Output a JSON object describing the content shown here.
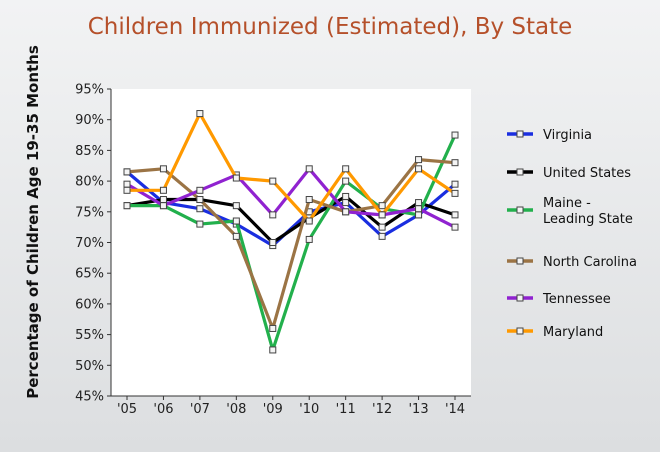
{
  "chart_data": {
    "type": "line",
    "title": "Children Immunized (Estimated), By State",
    "xlabel": "",
    "ylabel": "Percentage of Children Age 19-35 Months",
    "categories": [
      "'05",
      "'06",
      "'07",
      "'08",
      "'09",
      "'10",
      "'11",
      "'12",
      "'13",
      "'14"
    ],
    "yticks": [
      "45%",
      "50%",
      "55%",
      "60%",
      "65%",
      "70%",
      "75%",
      "80%",
      "85%",
      "90%",
      "95%"
    ],
    "ylim": [
      45,
      95
    ],
    "grid": false,
    "legend_position": "right",
    "series": [
      {
        "name": "Virginia",
        "color": "#1a2ee0",
        "values": [
          81.5,
          76.5,
          75.5,
          73,
          69.5,
          75,
          76.5,
          71,
          74.5,
          79.5
        ]
      },
      {
        "name": "United States",
        "color": "#000000",
        "values": [
          76,
          77,
          77,
          76,
          70,
          74,
          77.5,
          72.5,
          76.5,
          74.5
        ]
      },
      {
        "name": "Maine -\nLeading State",
        "color": "#22b04c",
        "values": [
          76,
          76,
          73,
          73.5,
          52.5,
          70.5,
          80,
          75.5,
          74.5,
          87.5
        ]
      },
      {
        "name": "North Carolina",
        "color": "#9b7445",
        "values": [
          81.5,
          82,
          77,
          71,
          56,
          77,
          75,
          76,
          83.5,
          83
        ]
      },
      {
        "name": "Tennessee",
        "color": "#9022d0",
        "values": [
          79.5,
          76,
          78.5,
          81,
          74.5,
          82,
          75,
          74.5,
          75.5,
          72.5
        ]
      },
      {
        "name": "Maryland",
        "color": "#ff9900",
        "values": [
          78.5,
          78.5,
          91,
          80.5,
          80,
          73.5,
          82,
          74.5,
          82,
          78
        ]
      }
    ]
  }
}
